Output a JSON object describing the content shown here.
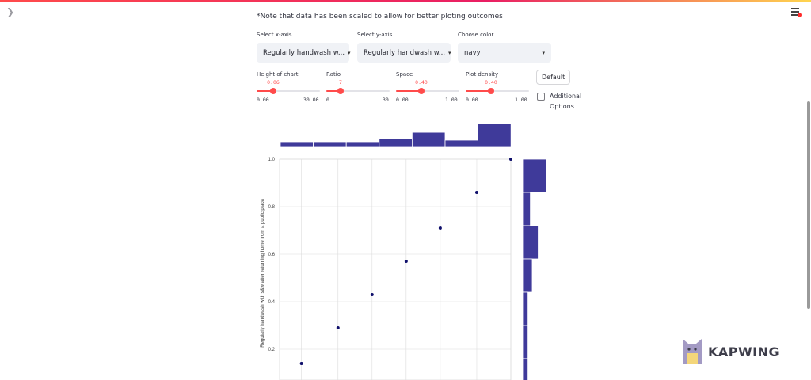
{
  "page": {
    "note": "*Note that data has been scaled to allow for better ploting outcomes",
    "menu_icon": "hamburger-menu-icon",
    "sidebar_toggle_icon": "chevron-right-icon"
  },
  "selectors": [
    {
      "label": "Select x-axis",
      "value": "Regularly handwash w..."
    },
    {
      "label": "Select y-axis",
      "value": "Regularly handwash w..."
    },
    {
      "label": "Choose color",
      "value": "navy"
    }
  ],
  "sliders": [
    {
      "label": "Height of chart",
      "value": "0.06",
      "min": "0.00",
      "max": "30.00",
      "fraction": 0.4
    },
    {
      "label": "Ratio",
      "value": "7",
      "min": "0",
      "max": "30",
      "fraction": 0.23
    },
    {
      "label": "Space",
      "value": "0.40",
      "min": "0.00",
      "max": "1.00",
      "fraction": 0.4
    },
    {
      "label": "Plot density",
      "value": "0.40",
      "min": "0.00",
      "max": "1.00",
      "fraction": 0.4
    }
  ],
  "buttons": {
    "default": "Default"
  },
  "checkbox": {
    "label": "Additional Options",
    "checked": false
  },
  "watermark": {
    "text": "KAPWING"
  },
  "colors": {
    "accent": "#ff4b4b",
    "bars": "#3f3a9a",
    "points": "#0f0f6b"
  },
  "chart_data": {
    "type": "scatter",
    "title": "",
    "xlabel": "",
    "ylabel": "Regularly handwash with s&w after returning home from a public place",
    "x_ticks": [],
    "y_ticks": [
      "0.2",
      "0.4",
      "0.6",
      "0.8",
      "1.0"
    ],
    "ylim": [
      0.1,
      1.0
    ],
    "xlim": [
      0.1,
      1.0
    ],
    "points": [
      {
        "x": 0.14,
        "y": 0.14
      },
      {
        "x": 0.29,
        "y": 0.29
      },
      {
        "x": 0.43,
        "y": 0.43
      },
      {
        "x": 0.57,
        "y": 0.57
      },
      {
        "x": 0.71,
        "y": 0.71
      },
      {
        "x": 0.86,
        "y": 0.86
      },
      {
        "x": 1.0,
        "y": 1.0
      }
    ],
    "top_histogram": [
      0.2,
      0.2,
      0.2,
      0.37,
      0.63,
      0.3,
      1.0
    ],
    "right_histogram": [
      1.0,
      0.32,
      0.65,
      0.4,
      0.22,
      0.22,
      0.22
    ]
  }
}
